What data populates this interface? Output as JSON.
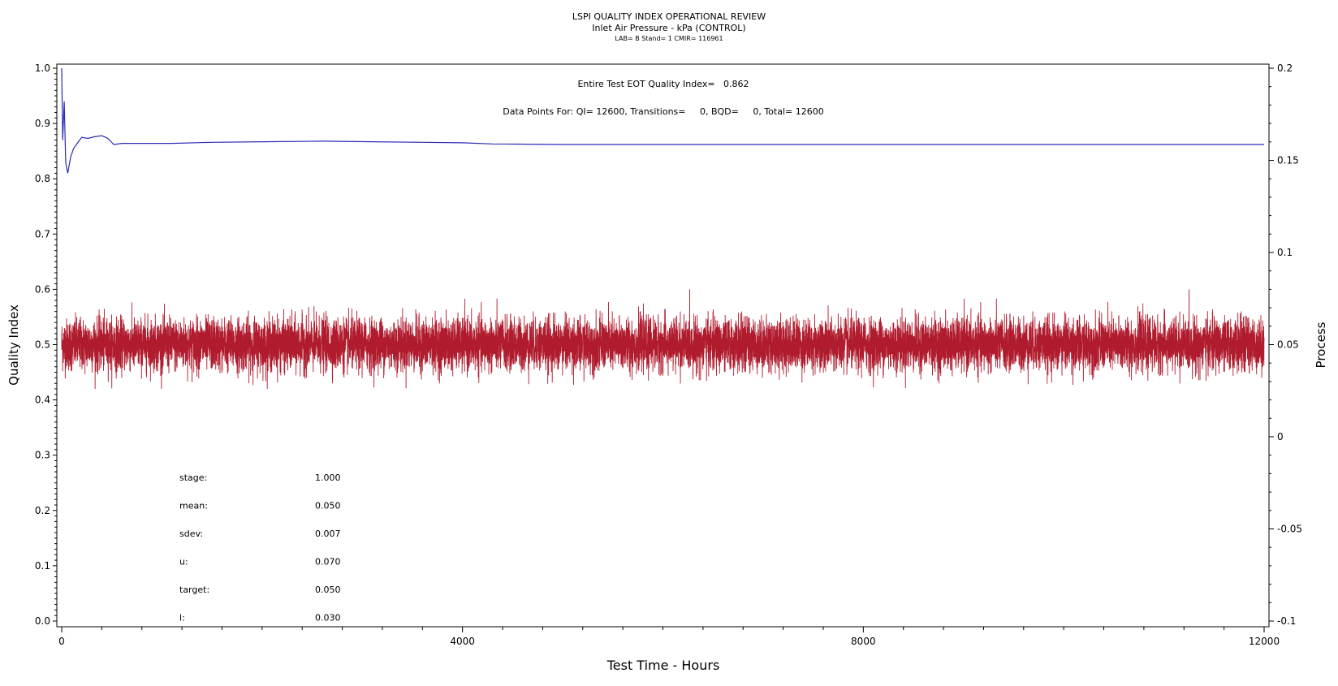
{
  "header": {
    "title": "LSPI QUALITY INDEX OPERATIONAL REVIEW",
    "subtitle": "Inlet Air Pressure - kPa (CONTROL)",
    "info": "LAB= B Stand= 1 CMIR= 116961"
  },
  "annotations": {
    "eot": "Entire Test EOT Quality Index=   0.862",
    "datapoints": "Data Points For: QI= 12600, Transitions=     0, BQD=     0, Total= 12600"
  },
  "stats": [
    {
      "label": "stage:",
      "value": "1.000"
    },
    {
      "label": "mean:",
      "value": "0.050"
    },
    {
      "label": "sdev:",
      "value": "0.007"
    },
    {
      "label": "u:",
      "value": "0.070"
    },
    {
      "label": "target:",
      "value": "0.050"
    },
    {
      "label": "l:",
      "value": "0.030"
    }
  ],
  "chart_data": {
    "type": "line",
    "xlabel": "Test Time - Hours",
    "ylabel": "Quality Index",
    "y2label": "Process",
    "xlim": [
      0,
      12000
    ],
    "ylim": [
      0.0,
      1.0
    ],
    "y2lim": [
      -0.1,
      0.2
    ],
    "x_ticks": [
      "0",
      "4000",
      "8000",
      "12000"
    ],
    "y_ticks": [
      "0.0",
      "0.1",
      "0.2",
      "0.3",
      "0.4",
      "0.5",
      "0.6",
      "0.7",
      "0.8",
      "0.9",
      "1.0"
    ],
    "y2_ticks": [
      "-0.1",
      "-0.05",
      "0",
      "0.05",
      "0.1",
      "0.15",
      "0.2"
    ],
    "series": [
      {
        "axis": "left",
        "color": "#2a2ab8",
        "points": [
          [
            0,
            1.0
          ],
          [
            10,
            0.87
          ],
          [
            25,
            0.94
          ],
          [
            40,
            0.83
          ],
          [
            60,
            0.81
          ],
          [
            90,
            0.84
          ],
          [
            120,
            0.855
          ],
          [
            160,
            0.865
          ],
          [
            200,
            0.875
          ],
          [
            260,
            0.873
          ],
          [
            330,
            0.876
          ],
          [
            400,
            0.878
          ],
          [
            460,
            0.873
          ],
          [
            520,
            0.862
          ],
          [
            600,
            0.864
          ],
          [
            800,
            0.864
          ],
          [
            1100,
            0.864
          ],
          [
            1500,
            0.866
          ],
          [
            2000,
            0.867
          ],
          [
            2600,
            0.868
          ],
          [
            3100,
            0.867
          ],
          [
            3600,
            0.866
          ],
          [
            4000,
            0.865
          ],
          [
            4300,
            0.863
          ],
          [
            5000,
            0.862
          ],
          [
            6000,
            0.862
          ],
          [
            7000,
            0.862
          ],
          [
            8000,
            0.862
          ],
          [
            9000,
            0.862
          ],
          [
            10000,
            0.862
          ],
          [
            12000,
            0.862
          ]
        ]
      },
      {
        "axis": "right",
        "color": "#b01c2e",
        "mean": 0.05,
        "sdev": 0.007,
        "count": 12600,
        "max": 0.082,
        "min": 0.026
      }
    ]
  }
}
